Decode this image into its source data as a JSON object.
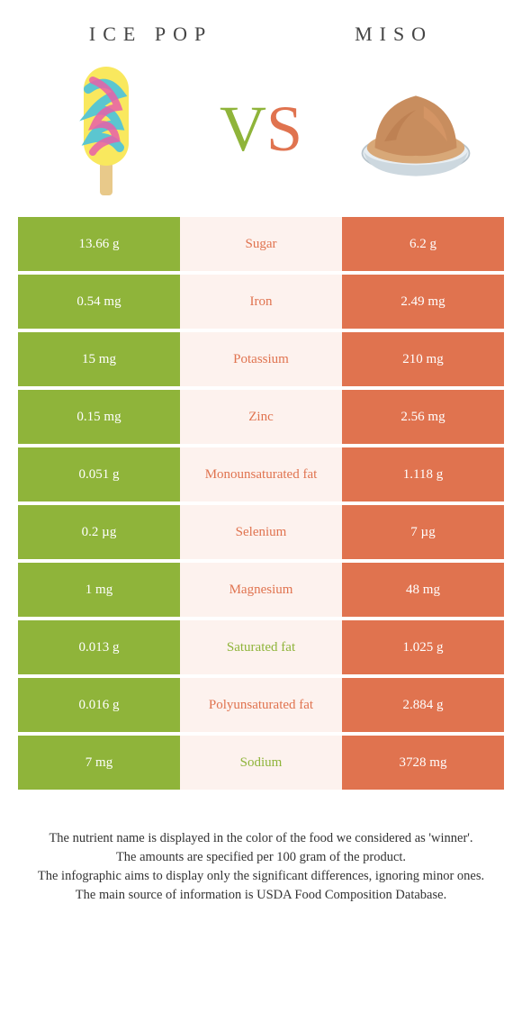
{
  "header": {
    "left_title": "Ice pop",
    "right_title": "Miso",
    "vs_v": "V",
    "vs_s": "S"
  },
  "colors": {
    "left_bg": "#8fb43a",
    "right_bg": "#e0734f",
    "mid_bg": "#fdf2ee"
  },
  "rows": [
    {
      "left": "13.66 g",
      "label": "Sugar",
      "winner": "orange",
      "right": "6.2 g"
    },
    {
      "left": "0.54 mg",
      "label": "Iron",
      "winner": "orange",
      "right": "2.49 mg"
    },
    {
      "left": "15 mg",
      "label": "Potassium",
      "winner": "orange",
      "right": "210 mg"
    },
    {
      "left": "0.15 mg",
      "label": "Zinc",
      "winner": "orange",
      "right": "2.56 mg"
    },
    {
      "left": "0.051 g",
      "label": "Monounsaturated fat",
      "winner": "orange",
      "right": "1.118 g"
    },
    {
      "left": "0.2 µg",
      "label": "Selenium",
      "winner": "orange",
      "right": "7 µg"
    },
    {
      "left": "1 mg",
      "label": "Magnesium",
      "winner": "orange",
      "right": "48 mg"
    },
    {
      "left": "0.013 g",
      "label": "Saturated fat",
      "winner": "green",
      "right": "1.025 g"
    },
    {
      "left": "0.016 g",
      "label": "Polyunsaturated fat",
      "winner": "orange",
      "right": "2.884 g"
    },
    {
      "left": "7 mg",
      "label": "Sodium",
      "winner": "green",
      "right": "3728 mg"
    }
  ],
  "footer": {
    "line1": "The nutrient name is displayed in the color of the food we considered as 'winner'.",
    "line2": "The amounts are specified per 100 gram of the product.",
    "line3": "The infographic aims to display only the significant differences, ignoring minor ones.",
    "line4": "The main source of information is USDA Food Composition Database."
  }
}
